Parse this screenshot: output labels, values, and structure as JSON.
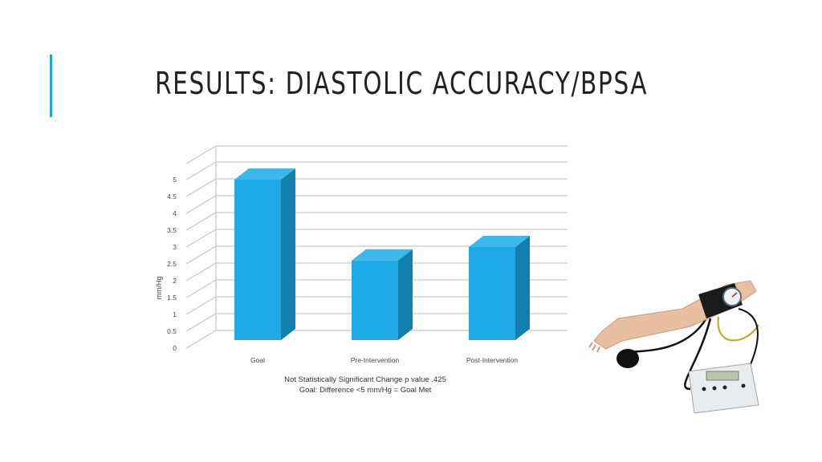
{
  "slide": {
    "title": "RESULTS: DIASTOLIC ACCURACY/BPSA",
    "accent_color": "#1aa6d8"
  },
  "chart_data": {
    "type": "bar",
    "style": "3d",
    "categories": [
      "Goal",
      "Pre-Intervention",
      "Post-Intervention"
    ],
    "values": [
      5,
      2.6,
      3
    ],
    "ylabel": "mm/Hg",
    "xlabel": "",
    "ylim": [
      0,
      5
    ],
    "yticks": [
      "0",
      "0.5",
      "1",
      "1.5",
      "2",
      "2.5",
      "3",
      "3.5",
      "4",
      "4.5",
      "5"
    ],
    "grid": true,
    "legend": "none",
    "bar_color": "#1eaae6",
    "bar_side_color": "#137fae",
    "bar_top_color": "#3bb8ec"
  },
  "notes": {
    "line1": "Not Statistically Significant Change p value .425",
    "line2": "Goal: Difference <5 mm/Hg = Goal Met"
  },
  "image": {
    "label": "Blood pressure arm trainer with control box"
  }
}
